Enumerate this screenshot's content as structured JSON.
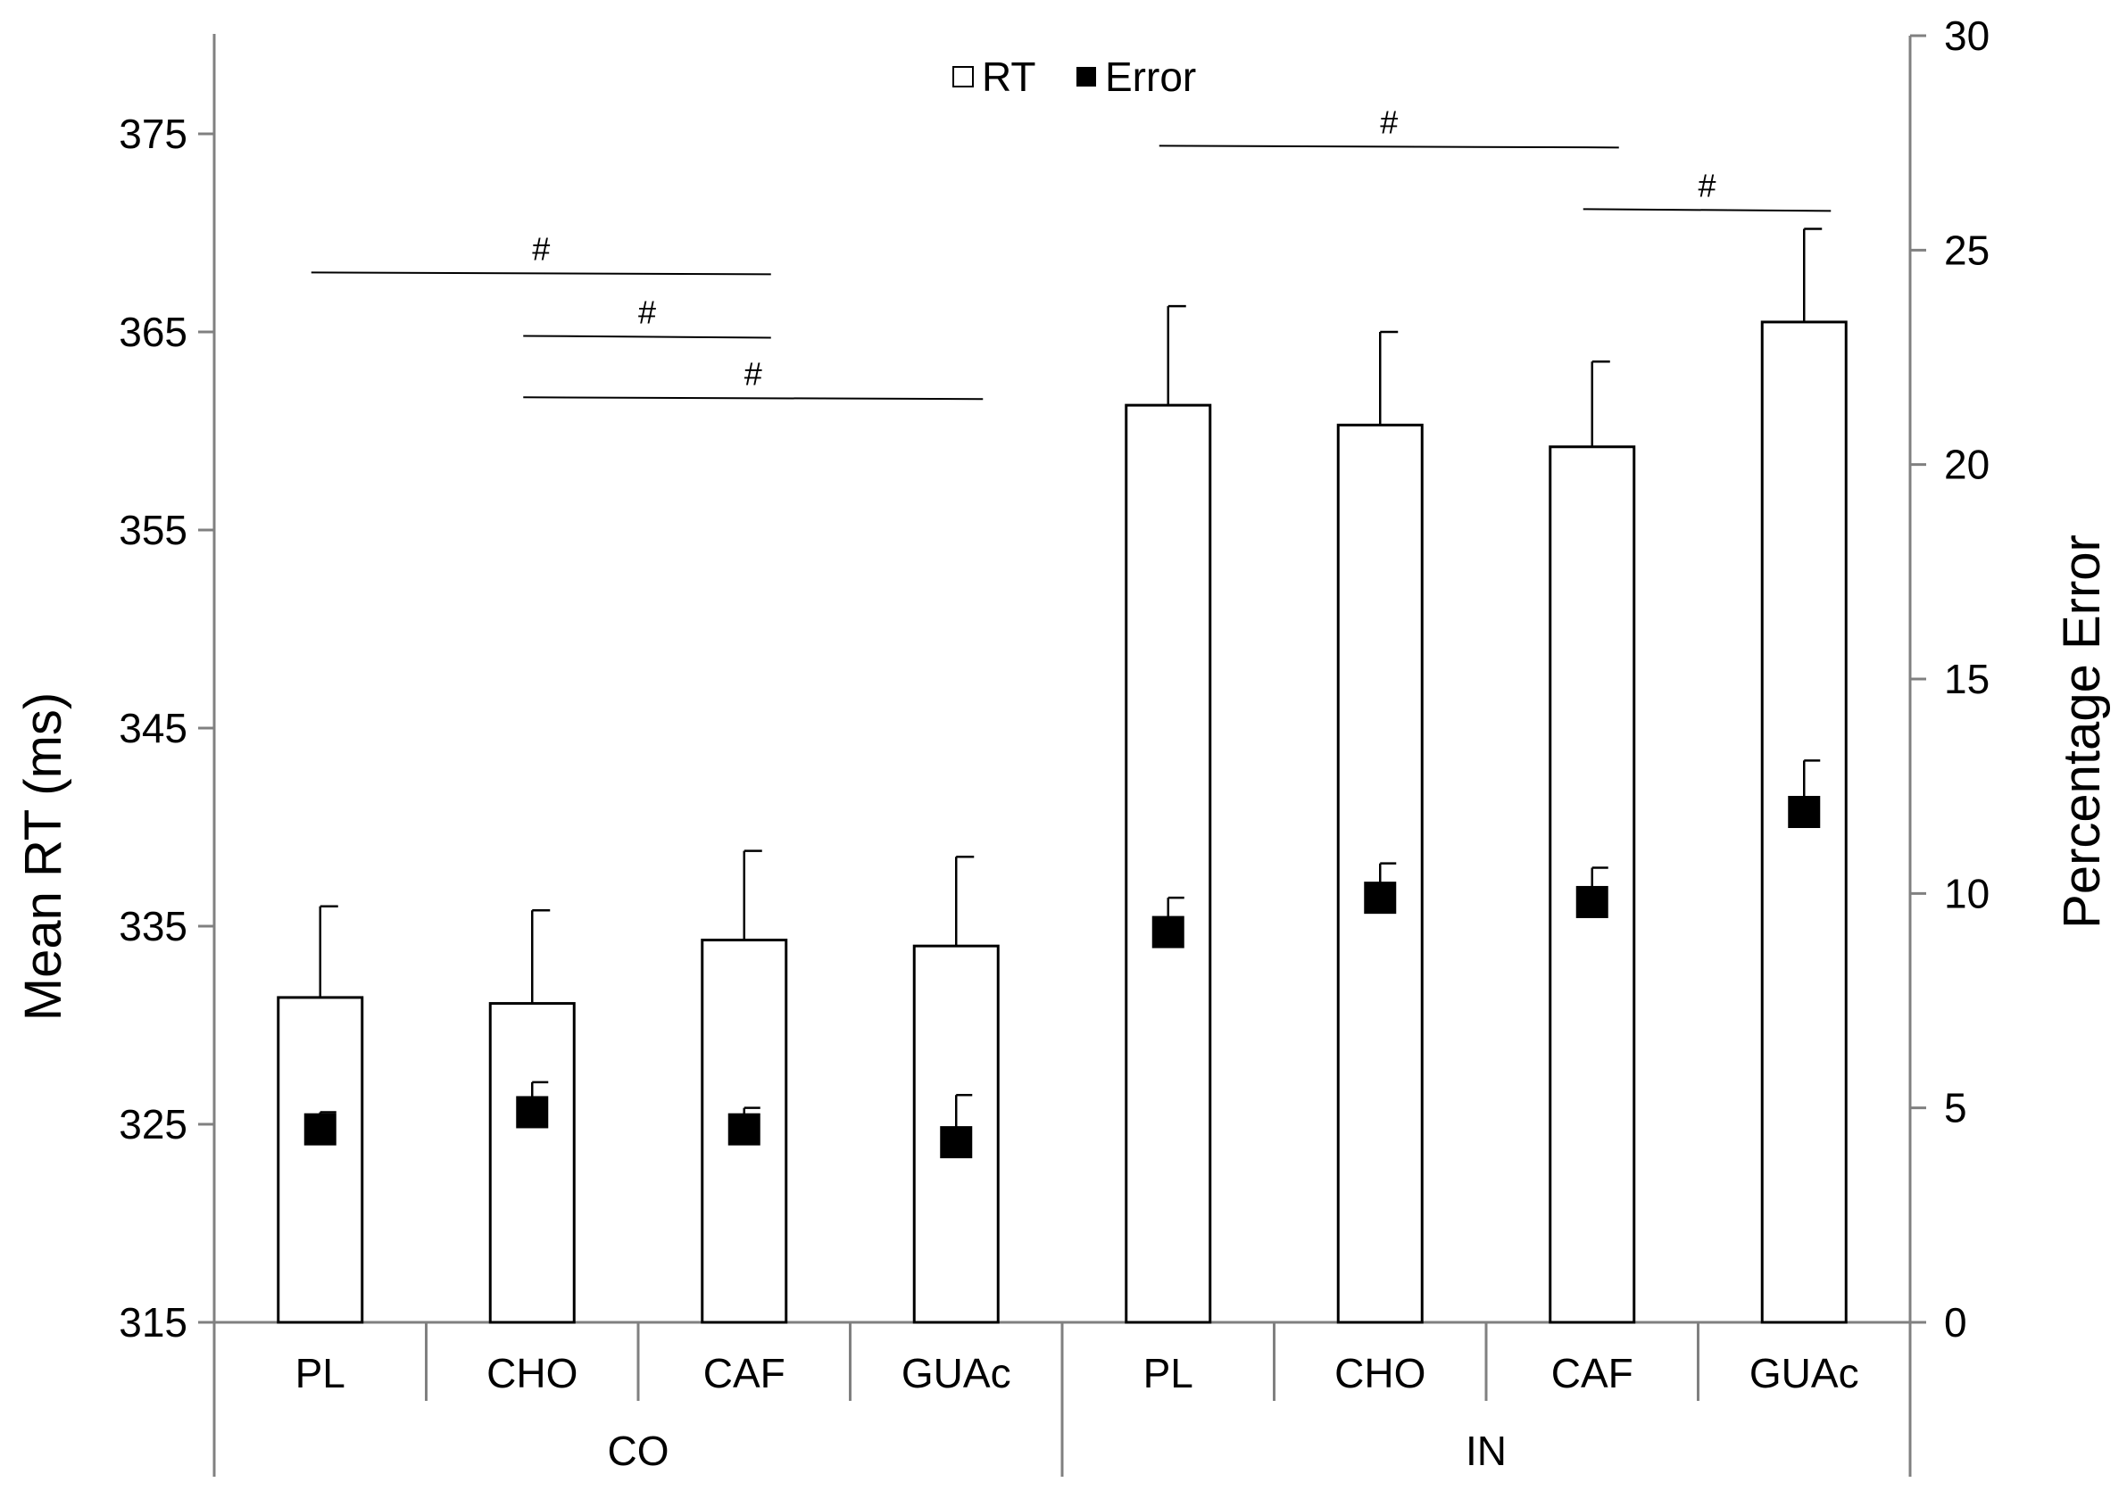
{
  "chart_data": {
    "type": "bar",
    "title": "",
    "groups": [
      {
        "label": "CO",
        "categories": [
          "PL",
          "CHO",
          "CAF",
          "GUAc"
        ]
      },
      {
        "label": "IN",
        "categories": [
          "PL",
          "CHO",
          "CAF",
          "GUAc"
        ]
      }
    ],
    "ylabel": "Mean RT (ms)",
    "y2label": "Percentage Error",
    "ylim": [
      315,
      380
    ],
    "y2lim": [
      0,
      30
    ],
    "yticks": [
      315,
      325,
      335,
      345,
      355,
      365,
      375
    ],
    "y2ticks": [
      0,
      5,
      10,
      15,
      20,
      25,
      30
    ],
    "legend": {
      "placement": "top-center",
      "items": [
        {
          "symbol": "open-square",
          "label": "RT"
        },
        {
          "symbol": "filled-square",
          "label": "Error"
        }
      ]
    },
    "series": [
      {
        "name": "RT",
        "axis": "left",
        "kind": "bar",
        "values": [
          331.4,
          331.1,
          334.3,
          334.0,
          361.3,
          360.3,
          359.2,
          365.5
        ],
        "error_plus": [
          4.6,
          4.7,
          4.5,
          4.5,
          5.0,
          4.7,
          4.3,
          4.7
        ]
      },
      {
        "name": "Error",
        "axis": "right",
        "kind": "marker",
        "values": [
          4.5,
          4.9,
          4.5,
          4.2,
          9.1,
          9.9,
          9.8,
          11.9
        ],
        "error_plus": [
          0.4,
          0.7,
          0.5,
          1.1,
          0.8,
          0.8,
          0.8,
          1.2
        ]
      }
    ],
    "significance": [
      {
        "label": "#",
        "from": 0,
        "to": 2,
        "y": 368
      },
      {
        "label": "#",
        "from": 1,
        "to": 2,
        "y": 364.8
      },
      {
        "label": "#",
        "from": 1,
        "to": 3,
        "y": 361.7
      },
      {
        "label": "#",
        "from": 4,
        "to": 6,
        "y": 374.4
      },
      {
        "label": "#",
        "from": 6,
        "to": 7,
        "y": 371.2
      }
    ],
    "grid": false,
    "colors": {
      "bar_fill": "#ffffff",
      "bar_stroke": "#000000",
      "marker": "#000000",
      "axis": "#808080"
    }
  }
}
